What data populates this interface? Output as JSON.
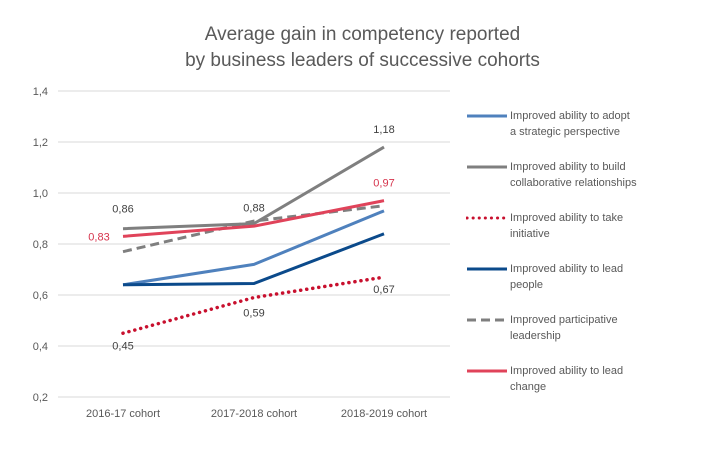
{
  "chart_data": {
    "type": "line",
    "title": [
      "Average gain in competency reported",
      "by business leaders of successive cohorts"
    ],
    "xlabel": "",
    "ylabel": "",
    "categories": [
      "2016-17 cohort",
      "2017-2018 cohort",
      "2018-2019 cohort"
    ],
    "ylim": [
      0.2,
      1.4
    ],
    "yticks": [
      0.2,
      0.4,
      0.6,
      0.8,
      1.0,
      1.2,
      1.4
    ],
    "ytick_labels": [
      "0,2",
      "0,4",
      "0,6",
      "0,8",
      "1,0",
      "1,2",
      "1,4"
    ],
    "grid": true,
    "legend_position": "right",
    "series": [
      {
        "name": "Improved ability to adopt a strategic perspective",
        "legend_lines": [
          "Improved ability to adopt",
          "a strategic perspective"
        ],
        "values": [
          0.64,
          0.72,
          0.93
        ],
        "color": "#4F81BD",
        "style": "solid",
        "labels": [
          null,
          null,
          null
        ]
      },
      {
        "name": "Improved ability to build collaborative relationships",
        "legend_lines": [
          "Improved ability to build",
          "collaborative relationships"
        ],
        "values": [
          0.86,
          0.88,
          1.18
        ],
        "color": "#7F7F7F",
        "style": "solid",
        "labels": [
          "0,86",
          "0,88",
          "1,18"
        ],
        "label_color": "#404040"
      },
      {
        "name": "Improved ability to take initiative",
        "legend_lines": [
          "Improved ability to take",
          "initiative"
        ],
        "values": [
          0.45,
          0.59,
          0.67
        ],
        "color": "#C8102E",
        "style": "dotted",
        "labels": [
          "0,45",
          "0,59",
          "0,67"
        ],
        "label_color": "#404040"
      },
      {
        "name": "Improved ability to lead people",
        "legend_lines": [
          "Improved ability to lead",
          "people"
        ],
        "values": [
          0.64,
          0.645,
          0.84
        ],
        "color": "#0B4A8B",
        "style": "solid",
        "labels": [
          null,
          null,
          null
        ]
      },
      {
        "name": "Improved participative leadership",
        "legend_lines": [
          "Improved participative",
          "leadership"
        ],
        "values": [
          0.77,
          0.89,
          0.95
        ],
        "color": "#7F7F7F",
        "style": "dashed",
        "labels": [
          null,
          null,
          null
        ]
      },
      {
        "name": "Improved ability to lead change",
        "legend_lines": [
          "Improved ability to lead",
          "change"
        ],
        "values": [
          0.83,
          0.87,
          0.97
        ],
        "color": "#E0435A",
        "style": "solid",
        "labels": [
          "0,83",
          null,
          "0,97"
        ],
        "label_color": "#D6334C"
      }
    ]
  }
}
